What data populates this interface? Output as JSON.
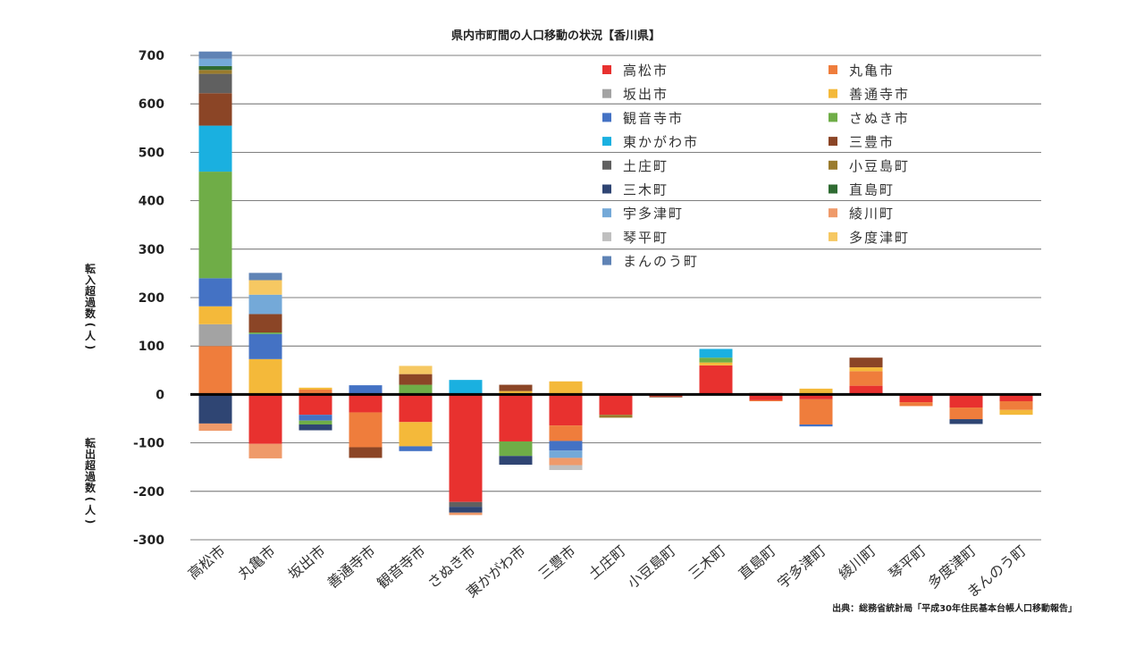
{
  "chart_data": {
    "type": "bar",
    "stacked": true,
    "title": "県内市町間の人口移動の状況【香川県】",
    "ylabel_positive": "転入超過数(人)",
    "ylabel_negative": "転出超過数(人)",
    "ylim": [
      -300,
      700
    ],
    "yticks": [
      700,
      600,
      500,
      400,
      300,
      200,
      100,
      0,
      -100,
      -200,
      -300
    ],
    "grid": true,
    "legend_position": "top-right",
    "source": "出典：総務省統計局「平成30年住民基本台帳人口移動報告」",
    "categories": [
      "高松市",
      "丸亀市",
      "坂出市",
      "善通寺市",
      "観音寺市",
      "さぬき市",
      "東かがわ市",
      "三豊市",
      "土庄町",
      "小豆島町",
      "三木町",
      "直島町",
      "宇多津町",
      "綾川町",
      "琴平町",
      "多度津町",
      "まんのう町"
    ],
    "series": [
      {
        "name": "高松市",
        "color": "#e8312f",
        "values": [
          0,
          -102,
          -42,
          -37,
          -57,
          -222,
          -97,
          -64,
          -42,
          -4,
          60,
          -12,
          -10,
          18,
          -16,
          -27,
          -14
        ]
      },
      {
        "name": "丸亀市",
        "color": "#ef7d3c",
        "values": [
          100,
          0,
          10,
          -72,
          0,
          0,
          0,
          -32,
          0,
          0,
          0,
          -2,
          -52,
          30,
          -8,
          -24,
          -18
        ]
      },
      {
        "name": "坂出市",
        "color": "#a3a3a3",
        "values": [
          45,
          0,
          0,
          0,
          0,
          0,
          0,
          0,
          0,
          0,
          0,
          0,
          0,
          0,
          0,
          0,
          0
        ]
      },
      {
        "name": "善通寺市",
        "color": "#f4b93a",
        "values": [
          37,
          73,
          4,
          0,
          -50,
          0,
          7,
          27,
          0,
          0,
          6,
          0,
          12,
          8,
          0,
          0,
          -10
        ]
      },
      {
        "name": "観音寺市",
        "color": "#4472c4",
        "values": [
          58,
          52,
          -12,
          19,
          -10,
          0,
          0,
          -20,
          0,
          0,
          0,
          0,
          -4,
          0,
          0,
          0,
          0
        ]
      },
      {
        "name": "さぬき市",
        "color": "#6fad47",
        "values": [
          220,
          3,
          -8,
          0,
          20,
          0,
          -30,
          0,
          0,
          0,
          10,
          0,
          0,
          0,
          0,
          0,
          0
        ]
      },
      {
        "name": "東かがわ市",
        "color": "#1ab0e0",
        "values": [
          95,
          0,
          0,
          0,
          0,
          30,
          0,
          0,
          0,
          0,
          18,
          0,
          0,
          0,
          0,
          0,
          0
        ]
      },
      {
        "name": "三豊市",
        "color": "#8b4526",
        "values": [
          67,
          38,
          0,
          -22,
          22,
          0,
          13,
          0,
          0,
          -2,
          0,
          3,
          0,
          20,
          0,
          0,
          0
        ]
      },
      {
        "name": "土庄町",
        "color": "#606060",
        "values": [
          40,
          0,
          0,
          0,
          0,
          -10,
          0,
          0,
          0,
          0,
          0,
          0,
          0,
          0,
          0,
          0,
          0
        ]
      },
      {
        "name": "小豆島町",
        "color": "#9a7b2d",
        "values": [
          8,
          0,
          0,
          0,
          0,
          0,
          0,
          0,
          -6,
          0,
          0,
          0,
          0,
          0,
          0,
          0,
          0
        ]
      },
      {
        "name": "三木町",
        "color": "#2f4573",
        "values": [
          -60,
          0,
          -12,
          0,
          0,
          -12,
          -18,
          0,
          0,
          0,
          0,
          0,
          0,
          0,
          0,
          -10,
          0
        ]
      },
      {
        "name": "直島町",
        "color": "#2f6b32",
        "values": [
          8,
          0,
          0,
          0,
          0,
          0,
          0,
          0,
          0,
          0,
          0,
          0,
          0,
          0,
          0,
          0,
          0
        ]
      },
      {
        "name": "宇多津町",
        "color": "#74a9d8",
        "values": [
          15,
          40,
          0,
          0,
          0,
          0,
          0,
          -15,
          0,
          0,
          0,
          0,
          0,
          0,
          0,
          0,
          0
        ]
      },
      {
        "name": "綾川町",
        "color": "#ef9a6a",
        "values": [
          -15,
          -30,
          0,
          0,
          0,
          -5,
          0,
          -15,
          0,
          0,
          0,
          0,
          0,
          0,
          0,
          0,
          0
        ]
      },
      {
        "name": "琴平町",
        "color": "#bfbfbf",
        "values": [
          0,
          0,
          0,
          0,
          0,
          0,
          0,
          -10,
          0,
          0,
          0,
          0,
          0,
          0,
          0,
          0,
          0
        ]
      },
      {
        "name": "多度津町",
        "color": "#f6c862",
        "values": [
          0,
          30,
          0,
          0,
          17,
          0,
          0,
          0,
          0,
          0,
          0,
          0,
          0,
          0,
          0,
          0,
          0
        ]
      },
      {
        "name": "まんのう町",
        "color": "#5f83b5",
        "values": [
          15,
          15,
          0,
          0,
          0,
          0,
          0,
          0,
          0,
          0,
          0,
          0,
          0,
          0,
          0,
          0,
          0
        ]
      }
    ]
  }
}
